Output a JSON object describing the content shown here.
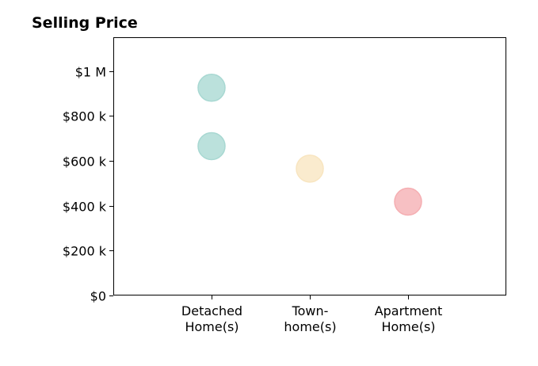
{
  "chart_data": {
    "type": "scatter",
    "title": "Selling Price",
    "xlabel": "",
    "ylabel": "",
    "categories": [
      [
        "Detached",
        "Home(s)"
      ],
      [
        "Town-",
        "home(s)"
      ],
      [
        "Apartment",
        "Home(s)"
      ]
    ],
    "ylim": [
      0,
      1150000
    ],
    "yticks": [
      0,
      200000,
      400000,
      600000,
      800000,
      1000000
    ],
    "ytick_labels": [
      "$0",
      "$200 k",
      "$400 k",
      "$600 k",
      "$800 k",
      "$1 M"
    ],
    "grid": false,
    "points": [
      {
        "category_index": 0,
        "value": 925000,
        "color": "#a8d8d2"
      },
      {
        "category_index": 0,
        "value": 665000,
        "color": "#a8d8d2"
      },
      {
        "category_index": 1,
        "value": 565000,
        "color": "#f8e5c0"
      },
      {
        "category_index": 2,
        "value": 418000,
        "color": "#f5aeb2"
      }
    ]
  }
}
